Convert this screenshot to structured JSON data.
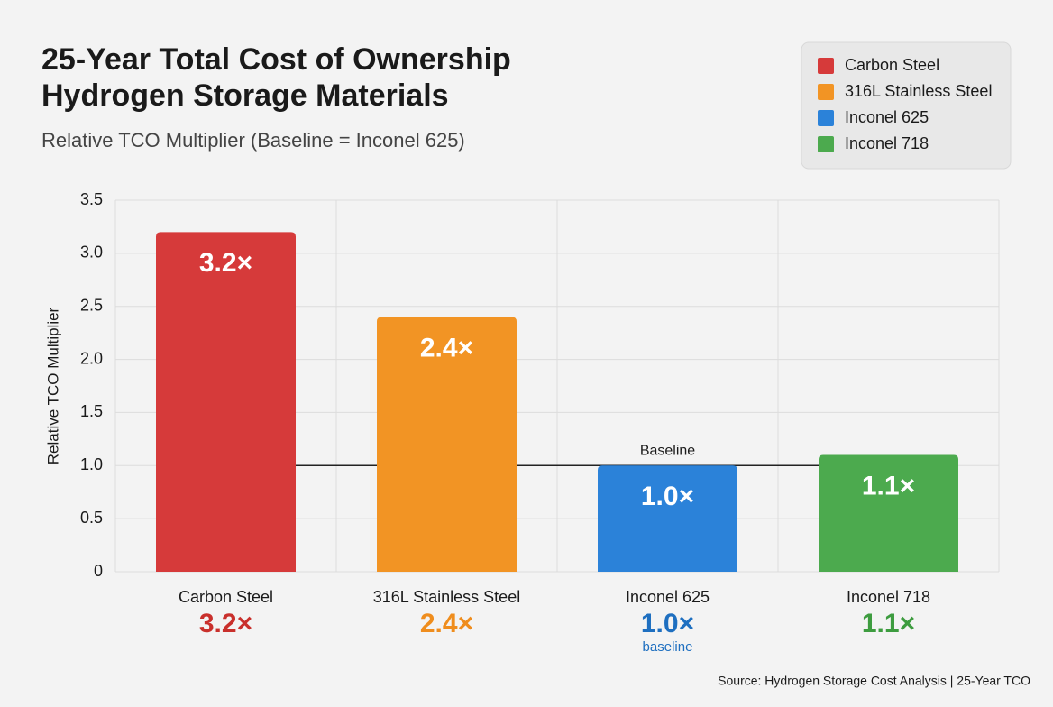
{
  "chart_data": {
    "type": "bar",
    "title": [
      "25-Year Total Cost of Ownership",
      "Hydrogen Storage Materials"
    ],
    "subtitle": "Relative TCO Multiplier (Baseline = Inconel 625)",
    "y_label": "Relative TCO Multiplier",
    "categories": [
      "Carbon Steel",
      "316L Stainless Steel",
      "Inconel 625",
      "Inconel 718"
    ],
    "values": [
      3.2,
      2.4,
      1.0,
      1.1
    ],
    "value_labels": [
      "3.2×",
      "2.4×",
      "1.0×",
      "1.1×"
    ],
    "colors": [
      "#d63a3a",
      "#f29424",
      "#2b82d9",
      "#4caa4e"
    ],
    "label_colors": [
      "#c9302c",
      "#ef8d1d",
      "#1e6fc0",
      "#3d9c3f"
    ],
    "category_notes": [
      null,
      null,
      "baseline",
      null
    ],
    "baseline": {
      "value": 1.0,
      "label": "Baseline"
    },
    "ylim": [
      0,
      3.5
    ],
    "yticks": [
      0,
      0.5,
      {
        "value": 1,
        "label": "1.0"
      },
      1.5,
      {
        "value": 2,
        "label": "2.0"
      },
      2.5,
      {
        "value": 3,
        "label": "3.0"
      },
      3.5
    ],
    "grid": true,
    "legend": "top-right",
    "source": "Source: Hydrogen Storage Cost Analysis | 25-Year TCO"
  }
}
